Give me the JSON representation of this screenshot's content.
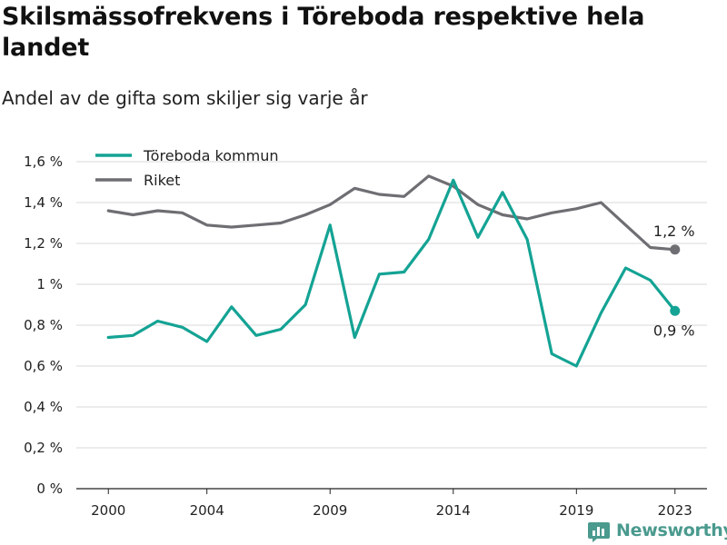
{
  "title": "Skilsmässofrekvens i Töreboda respektive hela landet",
  "subtitle": "Andel av de gifta som skiljer sig varje år",
  "brand": "Newsworthy",
  "chart_data": {
    "type": "line",
    "x": [
      2000,
      2001,
      2002,
      2003,
      2004,
      2005,
      2006,
      2007,
      2008,
      2009,
      2010,
      2011,
      2012,
      2013,
      2014,
      2015,
      2016,
      2017,
      2018,
      2019,
      2020,
      2021,
      2022,
      2023
    ],
    "x_ticks": [
      2000,
      2004,
      2009,
      2014,
      2019,
      2023
    ],
    "x_tick_labels": [
      "2000",
      "2004",
      "2009",
      "2014",
      "2019",
      "2023"
    ],
    "ylim": [
      0,
      1.6
    ],
    "y_ticks": [
      0,
      0.2,
      0.4,
      0.6,
      0.8,
      1.0,
      1.2,
      1.4,
      1.6
    ],
    "y_tick_labels": [
      "0 %",
      "0,2 %",
      "0,4 %",
      "0,6 %",
      "0,8 %",
      "1 %",
      "1,2 %",
      "1,4 %",
      "1,6 %"
    ],
    "grid": true,
    "legend_position": "top-left",
    "series": [
      {
        "name": "Töreboda kommun",
        "color": "#14a394",
        "values": [
          0.74,
          0.75,
          0.82,
          0.79,
          0.72,
          0.89,
          0.75,
          0.78,
          0.9,
          1.29,
          0.74,
          1.05,
          1.06,
          1.22,
          1.51,
          1.23,
          1.45,
          1.22,
          0.66,
          0.6,
          0.86,
          1.08,
          1.02,
          0.87
        ],
        "end_label": "0,9 %"
      },
      {
        "name": "Riket",
        "color": "#6e6e73",
        "values": [
          1.36,
          1.34,
          1.36,
          1.35,
          1.29,
          1.28,
          1.29,
          1.3,
          1.34,
          1.39,
          1.47,
          1.44,
          1.43,
          1.53,
          1.48,
          1.39,
          1.34,
          1.32,
          1.35,
          1.37,
          1.4,
          1.29,
          1.18,
          1.17
        ],
        "end_label": "1,2 %"
      }
    ]
  }
}
